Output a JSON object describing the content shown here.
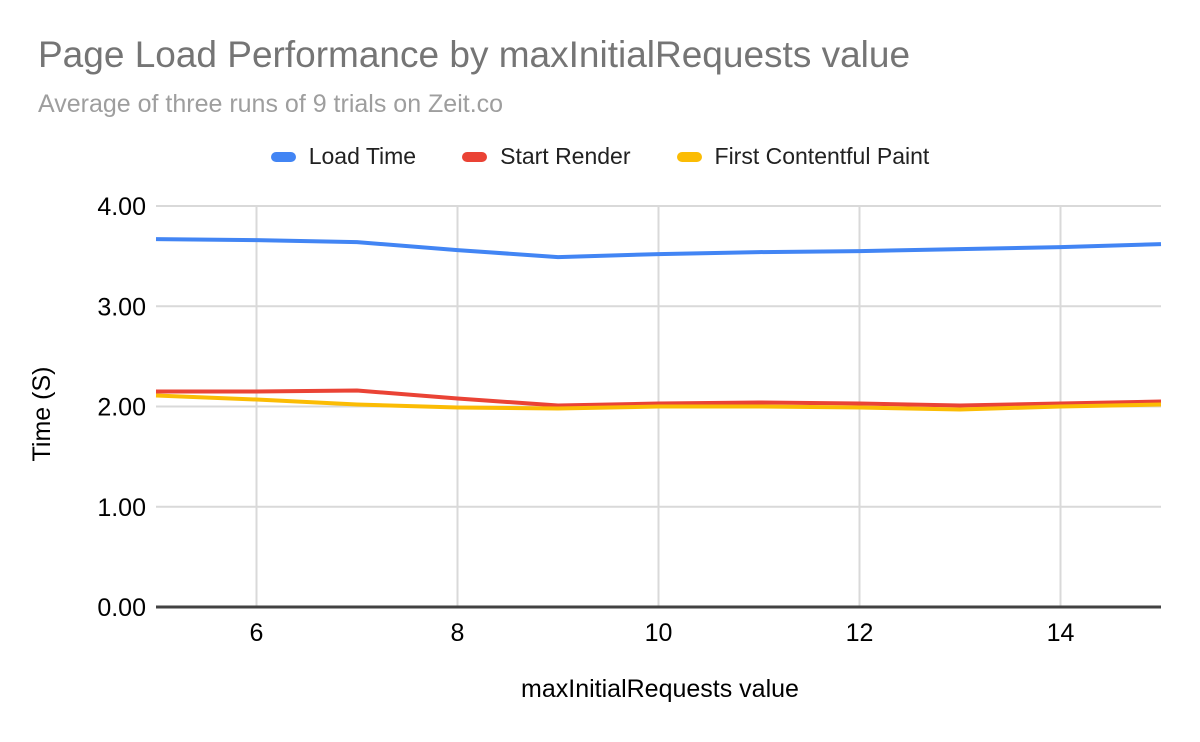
{
  "header": {
    "title": "Page Load Performance by maxInitialRequests value",
    "subtitle": "Average of three runs of 9 trials on Zeit.co"
  },
  "chart_data": {
    "type": "line",
    "title": "Page Load Performance by maxInitialRequests value",
    "subtitle": "Average of three runs of 9 trials on Zeit.co",
    "xlabel": "maxInitialRequests value",
    "ylabel": "Time (S)",
    "x": [
      5,
      6,
      7,
      8,
      9,
      10,
      11,
      12,
      13,
      14,
      15
    ],
    "series": [
      {
        "name": "Load Time",
        "color": "#4285F4",
        "values": [
          3.67,
          3.66,
          3.64,
          3.56,
          3.49,
          3.52,
          3.54,
          3.55,
          3.57,
          3.59,
          3.62
        ]
      },
      {
        "name": "Start Render",
        "color": "#EA4335",
        "values": [
          2.15,
          2.15,
          2.16,
          2.08,
          2.01,
          2.03,
          2.04,
          2.03,
          2.01,
          2.03,
          2.05
        ]
      },
      {
        "name": "First Contentful Paint",
        "color": "#FBBC04",
        "values": [
          2.11,
          2.07,
          2.02,
          1.99,
          1.98,
          2.0,
          2.0,
          1.99,
          1.97,
          2.0,
          2.02
        ]
      }
    ],
    "x_ticks": [
      6,
      8,
      10,
      12,
      14
    ],
    "y_ticks": [
      "0.00",
      "1.00",
      "2.00",
      "3.00",
      "4.00"
    ],
    "xlim": [
      5,
      15
    ],
    "ylim": [
      0,
      4
    ],
    "grid": true,
    "legend_position": "top",
    "grid_color": "#d9d9d9",
    "baseline_color": "#424242",
    "tick_color": "#000000",
    "title_color": "#757575",
    "subtitle_color": "#9e9e9e"
  }
}
